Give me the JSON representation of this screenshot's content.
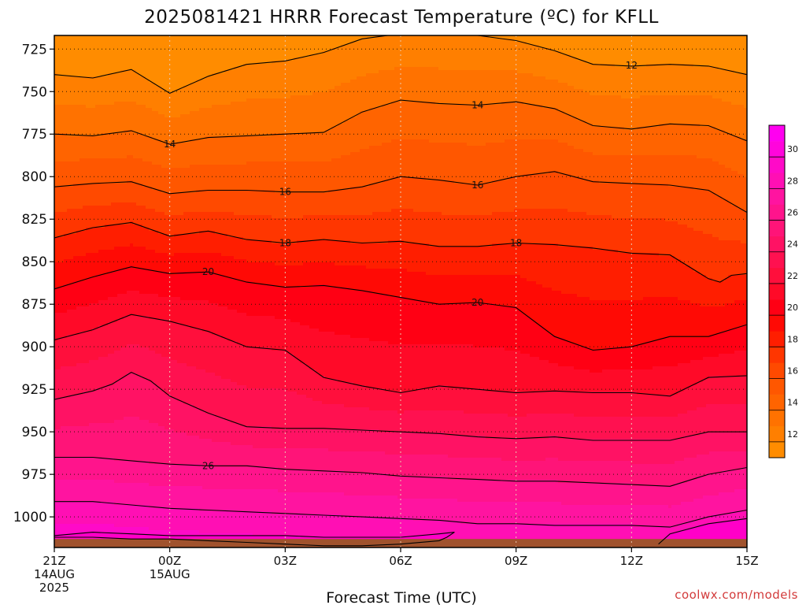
{
  "chart_data": {
    "type": "heatmap",
    "title": "2025081421 HRRR Forecast Temperature (ºC) for KFLL",
    "xlabel": "Forecast Time (UTC)",
    "ylabel": "",
    "credit": "coolwx.com/models",
    "x_range_hours": [
      0,
      18
    ],
    "y_axis": {
      "inverted": true,
      "range": [
        1018,
        717
      ]
    },
    "y_ticks": [
      725,
      750,
      775,
      800,
      825,
      850,
      875,
      900,
      925,
      950,
      975,
      1000
    ],
    "x_ticks": [
      {
        "hour": 0,
        "lines": [
          "21Z",
          "14AUG",
          "2025"
        ]
      },
      {
        "hour": 3,
        "lines": [
          "00Z",
          "15AUG"
        ]
      },
      {
        "hour": 6,
        "lines": [
          "03Z"
        ]
      },
      {
        "hour": 9,
        "lines": [
          "06Z"
        ]
      },
      {
        "hour": 12,
        "lines": [
          "09Z"
        ]
      },
      {
        "hour": 15,
        "lines": [
          "12Z"
        ]
      },
      {
        "hour": 18,
        "lines": [
          "15Z"
        ]
      }
    ],
    "grid": true,
    "ground_pressure": 1013,
    "colorbar": {
      "location": "right",
      "ticks": [
        12,
        14,
        16,
        18,
        20,
        22,
        24,
        26,
        28,
        30
      ],
      "levels": [
        11,
        12,
        13,
        14,
        15,
        16,
        17,
        18,
        19,
        20,
        21,
        22,
        23,
        24,
        25,
        26,
        27,
        28,
        29,
        30,
        31,
        32
      ],
      "colors": [
        "#ff8c00",
        "#ff7f00",
        "#ff7200",
        "#ff6400",
        "#ff5700",
        "#ff4a00",
        "#ff3600",
        "#ff1e00",
        "#ff0a05",
        "#ff0014",
        "#ff0a28",
        "#ff0f3c",
        "#ff1150",
        "#ff1264",
        "#ff1478",
        "#ff148c",
        "#ff14a0",
        "#ff0fb4",
        "#ff0ac8",
        "#ff05dc",
        "#ff00f0"
      ]
    },
    "contour_levels": [
      12,
      14,
      16,
      18,
      20,
      22,
      24,
      26,
      28,
      30
    ],
    "contours": [
      {
        "level": 12,
        "points": [
          [
            0,
            740
          ],
          [
            1,
            742
          ],
          [
            2,
            737
          ],
          [
            3,
            751
          ],
          [
            4,
            741
          ],
          [
            5,
            734
          ],
          [
            6,
            732
          ],
          [
            7,
            727
          ],
          [
            8,
            719
          ],
          [
            9,
            716
          ],
          [
            10,
            716
          ],
          [
            11,
            717
          ],
          [
            12,
            720
          ],
          [
            13,
            726
          ],
          [
            14,
            734
          ],
          [
            15,
            735
          ],
          [
            16,
            734
          ],
          [
            17,
            735
          ],
          [
            18,
            740
          ]
        ]
      },
      {
        "level": 14,
        "points": [
          [
            0,
            775
          ],
          [
            1,
            776
          ],
          [
            2,
            773
          ],
          [
            3,
            781
          ],
          [
            4,
            777
          ],
          [
            5,
            776
          ],
          [
            6,
            775
          ],
          [
            7,
            774
          ],
          [
            8,
            762
          ],
          [
            9,
            755
          ],
          [
            10,
            757
          ],
          [
            11,
            758
          ],
          [
            12,
            756
          ],
          [
            13,
            760
          ],
          [
            14,
            770
          ],
          [
            15,
            772
          ],
          [
            16,
            769
          ],
          [
            17,
            770
          ],
          [
            18,
            779
          ]
        ]
      },
      {
        "level": 16,
        "points": [
          [
            0,
            806
          ],
          [
            1,
            804
          ],
          [
            2,
            803
          ],
          [
            3,
            810
          ],
          [
            4,
            808
          ],
          [
            5,
            808
          ],
          [
            6,
            809
          ],
          [
            7,
            809
          ],
          [
            8,
            806
          ],
          [
            9,
            800
          ],
          [
            10,
            802
          ],
          [
            11,
            805
          ],
          [
            12,
            800
          ],
          [
            13,
            797
          ],
          [
            14,
            803
          ],
          [
            15,
            804
          ],
          [
            16,
            805
          ],
          [
            17,
            808
          ],
          [
            18,
            821
          ]
        ]
      },
      {
        "level": 18,
        "points": [
          [
            0,
            836
          ],
          [
            1,
            830
          ],
          [
            2,
            827
          ],
          [
            3,
            835
          ],
          [
            4,
            832
          ],
          [
            5,
            837
          ],
          [
            6,
            839
          ],
          [
            7,
            837
          ],
          [
            8,
            839
          ],
          [
            9,
            838
          ],
          [
            10,
            841
          ],
          [
            11,
            841
          ],
          [
            12,
            839
          ],
          [
            13,
            840
          ],
          [
            14,
            842
          ],
          [
            15,
            845
          ],
          [
            16,
            846
          ],
          [
            17,
            860
          ],
          [
            17.3,
            862
          ],
          [
            17.6,
            858
          ],
          [
            18,
            857
          ]
        ]
      },
      {
        "level": 20,
        "points": [
          [
            0,
            866
          ],
          [
            1,
            859
          ],
          [
            2,
            853
          ],
          [
            3,
            857
          ],
          [
            4,
            856
          ],
          [
            5,
            862
          ],
          [
            6,
            865
          ],
          [
            7,
            864
          ],
          [
            8,
            867
          ],
          [
            9,
            871
          ],
          [
            10,
            875
          ],
          [
            11,
            874
          ],
          [
            12,
            877
          ],
          [
            13,
            894
          ],
          [
            14,
            902
          ],
          [
            15,
            900
          ],
          [
            16,
            894
          ],
          [
            17,
            894
          ],
          [
            18,
            887
          ]
        ]
      },
      {
        "level": 22,
        "points": [
          [
            0,
            896
          ],
          [
            1,
            890
          ],
          [
            2,
            881
          ],
          [
            3,
            885
          ],
          [
            4,
            891
          ],
          [
            5,
            900
          ],
          [
            6,
            902
          ],
          [
            7,
            918
          ],
          [
            8,
            923
          ],
          [
            9,
            927
          ],
          [
            10,
            923
          ],
          [
            11,
            925
          ],
          [
            12,
            927
          ],
          [
            13,
            926
          ],
          [
            14,
            927
          ],
          [
            15,
            927
          ],
          [
            16,
            929
          ],
          [
            17,
            918
          ],
          [
            18,
            917
          ]
        ]
      },
      {
        "level": 24,
        "points": [
          [
            0,
            931
          ],
          [
            1,
            926
          ],
          [
            1.5,
            922
          ],
          [
            2,
            915
          ],
          [
            2.5,
            920
          ],
          [
            3,
            929
          ],
          [
            4,
            939
          ],
          [
            5,
            947
          ],
          [
            6,
            948
          ],
          [
            7,
            948
          ],
          [
            8,
            949
          ],
          [
            9,
            950
          ],
          [
            10,
            951
          ],
          [
            11,
            953
          ],
          [
            12,
            954
          ],
          [
            13,
            953
          ],
          [
            14,
            955
          ],
          [
            15,
            955
          ],
          [
            16,
            955
          ],
          [
            17,
            950
          ],
          [
            18,
            950
          ]
        ]
      },
      {
        "level": 26,
        "points": [
          [
            0,
            965
          ],
          [
            1,
            965
          ],
          [
            2,
            967
          ],
          [
            3,
            969
          ],
          [
            4,
            970
          ],
          [
            5,
            970
          ],
          [
            6,
            972
          ],
          [
            7,
            973
          ],
          [
            8,
            974
          ],
          [
            9,
            976
          ],
          [
            10,
            977
          ],
          [
            11,
            978
          ],
          [
            12,
            979
          ],
          [
            13,
            979
          ],
          [
            14,
            980
          ],
          [
            15,
            981
          ],
          [
            16,
            982
          ],
          [
            17,
            975
          ],
          [
            18,
            971
          ]
        ]
      },
      {
        "level": 28,
        "points": [
          [
            0,
            991
          ],
          [
            1,
            991
          ],
          [
            2,
            993
          ],
          [
            3,
            995
          ],
          [
            4,
            996
          ],
          [
            5,
            997
          ],
          [
            6,
            998
          ],
          [
            7,
            999
          ],
          [
            8,
            1000
          ],
          [
            9,
            1001
          ],
          [
            10,
            1002
          ],
          [
            11,
            1004
          ],
          [
            12,
            1004
          ],
          [
            13,
            1005
          ],
          [
            14,
            1005
          ],
          [
            15,
            1005
          ],
          [
            16,
            1006
          ],
          [
            17,
            1000
          ],
          [
            18,
            996
          ]
        ]
      },
      {
        "level": 30,
        "points": [
          [
            0,
            1011
          ],
          [
            1,
            1009
          ],
          [
            2,
            1010
          ],
          [
            3,
            1011
          ],
          [
            4,
            1011
          ],
          [
            5,
            1011
          ],
          [
            6,
            1011
          ],
          [
            7,
            1012
          ],
          [
            8,
            1012
          ],
          [
            9,
            1012
          ],
          [
            10,
            1010
          ],
          [
            10.4,
            1009
          ],
          [
            10.2,
            1012
          ],
          [
            10,
            1014
          ],
          [
            9,
            1016
          ],
          [
            8,
            1017
          ],
          [
            7,
            1017
          ],
          [
            6,
            1016
          ],
          [
            5,
            1015
          ],
          [
            4,
            1014
          ],
          [
            3,
            1013
          ],
          [
            2,
            1013
          ],
          [
            1,
            1012
          ],
          [
            0,
            1012
          ]
        ]
      },
      {
        "level": 30,
        "points": [
          [
            15.7,
            1016
          ],
          [
            16,
            1010
          ],
          [
            17,
            1004
          ],
          [
            18,
            1001
          ]
        ]
      }
    ],
    "contour_labels": [
      {
        "value": 12,
        "hour": 15,
        "p": 734.5
      },
      {
        "value": 14,
        "hour": 3,
        "p": 781
      },
      {
        "value": 14,
        "hour": 11,
        "p": 758
      },
      {
        "value": 16,
        "hour": 6,
        "p": 809
      },
      {
        "value": 16,
        "hour": 11,
        "p": 805
      },
      {
        "value": 18,
        "hour": 6,
        "p": 839
      },
      {
        "value": 18,
        "hour": 12,
        "p": 839
      },
      {
        "value": 20,
        "hour": 4,
        "p": 856
      },
      {
        "value": 20,
        "hour": 11,
        "p": 874
      },
      {
        "value": 26,
        "hour": 4,
        "p": 970
      }
    ]
  }
}
